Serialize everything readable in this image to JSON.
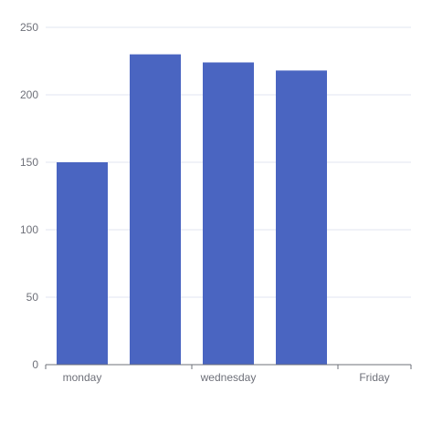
{
  "chart_data": {
    "type": "bar",
    "categories": [
      "monday",
      "",
      "wednesday",
      "",
      "Friday"
    ],
    "values": [
      150,
      230,
      224,
      218,
      0
    ],
    "ylim": [
      0,
      250
    ],
    "y_ticks": [
      0,
      50,
      100,
      150,
      200,
      250
    ],
    "grid": true,
    "bar_color": "#4a65c1"
  }
}
